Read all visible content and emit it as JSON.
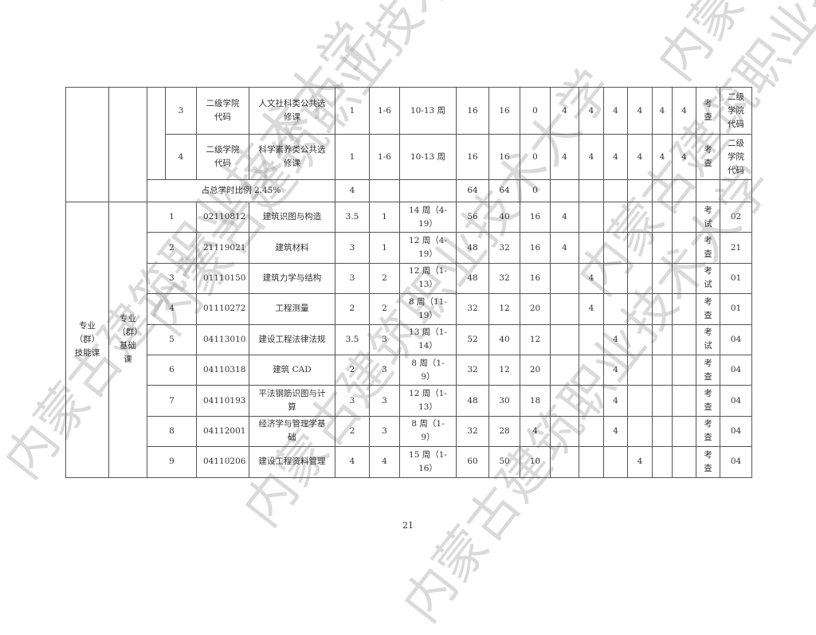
{
  "watermark": "内蒙古建筑职业技术大学",
  "page_number": "21",
  "top_rows": [
    {
      "seq": "3",
      "code": "二级学院代码",
      "name": "人文社科类公共选修课",
      "credit": "1",
      "semester": "1-6",
      "weeks": "10-13 周",
      "total": "16",
      "theory": "16",
      "practice": "0",
      "s": [
        "4",
        "4",
        "4",
        "4",
        "4",
        "4"
      ],
      "exam": "考查",
      "dept": "二级学院代码"
    },
    {
      "seq": "4",
      "code": "二级学院代码",
      "name": "科学素养类公共选修课",
      "credit": "1",
      "semester": "1-6",
      "weeks": "10-13 周",
      "total": "16",
      "theory": "16",
      "practice": "0",
      "s": [
        "4",
        "4",
        "4",
        "4",
        "4",
        "4"
      ],
      "exam": "考查",
      "dept": "二级学院代码"
    }
  ],
  "summary": {
    "label": "占总学时比例  2.45%",
    "credit": "4",
    "total": "64",
    "theory": "64",
    "practice": "0"
  },
  "section": {
    "category": "专业（群）技能课",
    "subcategory": "专业（群）基础课"
  },
  "rows": [
    {
      "seq": "1",
      "code": "02110812",
      "name": "建筑识图与构造",
      "credit": "3.5",
      "semester": "1",
      "weeks": "14 周（4-19）",
      "total": "56",
      "theory": "40",
      "practice": "16",
      "s": [
        "4",
        "",
        "",
        "",
        "",
        ""
      ],
      "exam": "考试",
      "dept": "02"
    },
    {
      "seq": "2",
      "code": "21119021",
      "name": "建筑材料",
      "credit": "3",
      "semester": "1",
      "weeks": "12 周（4-19）",
      "total": "48",
      "theory": "32",
      "practice": "16",
      "s": [
        "4",
        "",
        "",
        "",
        "",
        ""
      ],
      "exam": "考查",
      "dept": "21"
    },
    {
      "seq": "3",
      "code": "01110150",
      "name": "建筑力学与结构",
      "credit": "3",
      "semester": "2",
      "weeks": "12 周（1-13）",
      "total": "48",
      "theory": "32",
      "practice": "16",
      "s": [
        "",
        "4",
        "",
        "",
        "",
        ""
      ],
      "exam": "考试",
      "dept": "01"
    },
    {
      "seq": "4",
      "code": "01110272",
      "name": "工程测量",
      "credit": "2",
      "semester": "2",
      "weeks": "8 周（11-19）",
      "total": "32",
      "theory": "12",
      "practice": "20",
      "s": [
        "",
        "4",
        "",
        "",
        "",
        ""
      ],
      "exam": "考查",
      "dept": "01"
    },
    {
      "seq": "5",
      "code": "04113010",
      "name": "建设工程法律法规",
      "credit": "3.5",
      "semester": "3",
      "weeks": "13 周（1-14）",
      "total": "52",
      "theory": "40",
      "practice": "12",
      "s": [
        "",
        "",
        "4",
        "",
        "",
        ""
      ],
      "exam": "考试",
      "dept": "04"
    },
    {
      "seq": "6",
      "code": "04110318",
      "name": "建筑 CAD",
      "credit": "2",
      "semester": "3",
      "weeks": "8 周（1-9）",
      "total": "32",
      "theory": "12",
      "practice": "20",
      "s": [
        "",
        "",
        "4",
        "",
        "",
        ""
      ],
      "exam": "考查",
      "dept": "04"
    },
    {
      "seq": "7",
      "code": "04110193",
      "name": "平法钢筋识图与计算",
      "credit": "3",
      "semester": "3",
      "weeks": "12 周（1-13）",
      "total": "48",
      "theory": "30",
      "practice": "18",
      "s": [
        "",
        "",
        "4",
        "",
        "",
        ""
      ],
      "exam": "考查",
      "dept": "04"
    },
    {
      "seq": "8",
      "code": "04112001",
      "name": "经济学与管理学基础",
      "credit": "2",
      "semester": "3",
      "weeks": "8 周（1-9）",
      "total": "32",
      "theory": "28",
      "practice": "4",
      "s": [
        "",
        "",
        "4",
        "",
        "",
        ""
      ],
      "exam": "考查",
      "dept": "04"
    },
    {
      "seq": "9",
      "code": "04110206",
      "name": "建设工程资料管理",
      "credit": "4",
      "semester": "4",
      "weeks": "15 周（1-16）",
      "total": "60",
      "theory": "50",
      "practice": "10",
      "s": [
        "",
        "",
        "",
        "4",
        "",
        ""
      ],
      "exam": "考查",
      "dept": "04"
    }
  ]
}
